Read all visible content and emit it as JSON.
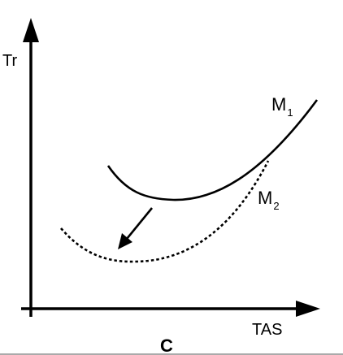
{
  "axes": {
    "y_label": "Tr",
    "x_label": "TAS"
  },
  "curves": [
    {
      "name": "M",
      "subscript": "1",
      "style": "solid"
    },
    {
      "name": "M",
      "subscript": "2",
      "style": "dotted"
    }
  ],
  "panel_label": "C",
  "colors": {
    "ink": "#000000",
    "background": "#ffffff"
  }
}
